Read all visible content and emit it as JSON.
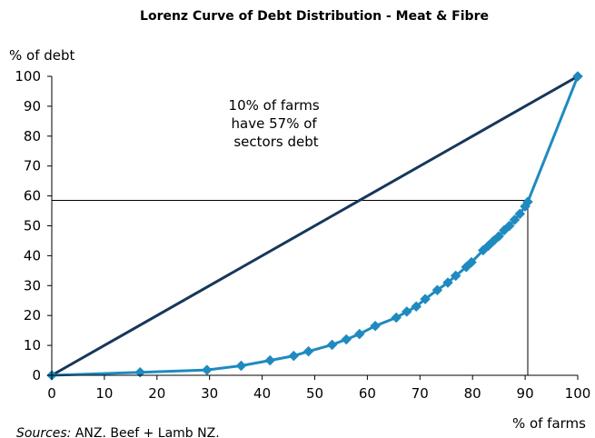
{
  "chart_data": {
    "type": "line",
    "title": "Lorenz Curve of Debt Distribution - Meat & Fibre",
    "ylabel": "% of debt",
    "xlabel": "% of farms",
    "xlim": [
      0,
      100
    ],
    "ylim": [
      0,
      100
    ],
    "xticks": [
      0,
      10,
      20,
      30,
      40,
      50,
      60,
      70,
      80,
      90,
      100
    ],
    "yticks": [
      0,
      10,
      20,
      30,
      40,
      50,
      60,
      70,
      80,
      90,
      100
    ],
    "grid": false,
    "legend": "none",
    "series": [
      {
        "role": "equality-line",
        "color": "#16375a",
        "marker": "none",
        "x": [
          0,
          100
        ],
        "y": [
          0,
          100
        ]
      },
      {
        "role": "lorenz-curve",
        "color": "#1f8ac0",
        "marker": "diamond",
        "x": [
          0,
          16.8,
          29.5,
          36,
          41.5,
          46,
          48.8,
          53.3,
          56,
          58.5,
          61.5,
          65.5,
          67.5,
          69.3,
          71,
          73.3,
          75.3,
          76.8,
          78.8,
          79.8,
          82,
          83,
          84,
          85,
          86,
          87,
          88,
          89,
          90,
          90.5,
          100
        ],
        "y": [
          0,
          1,
          1.8,
          3.2,
          5,
          6.5,
          8,
          10.2,
          12,
          13.8,
          16.5,
          19.3,
          21.3,
          23,
          25.5,
          28.5,
          31,
          33.3,
          36.2,
          37.8,
          41.8,
          43.3,
          45,
          46.5,
          48.5,
          50,
          52,
          54,
          56.5,
          58,
          100
        ]
      }
    ],
    "reference_lines": {
      "horizontal_y": 58.5,
      "vertical_x": 90.5,
      "color": "#000000"
    },
    "annotation": [
      "10% of farms",
      "have 57% of",
      "sectors debt"
    ],
    "source_label": "Sources:",
    "source_text": " ANZ. Beef + Lamb NZ."
  }
}
